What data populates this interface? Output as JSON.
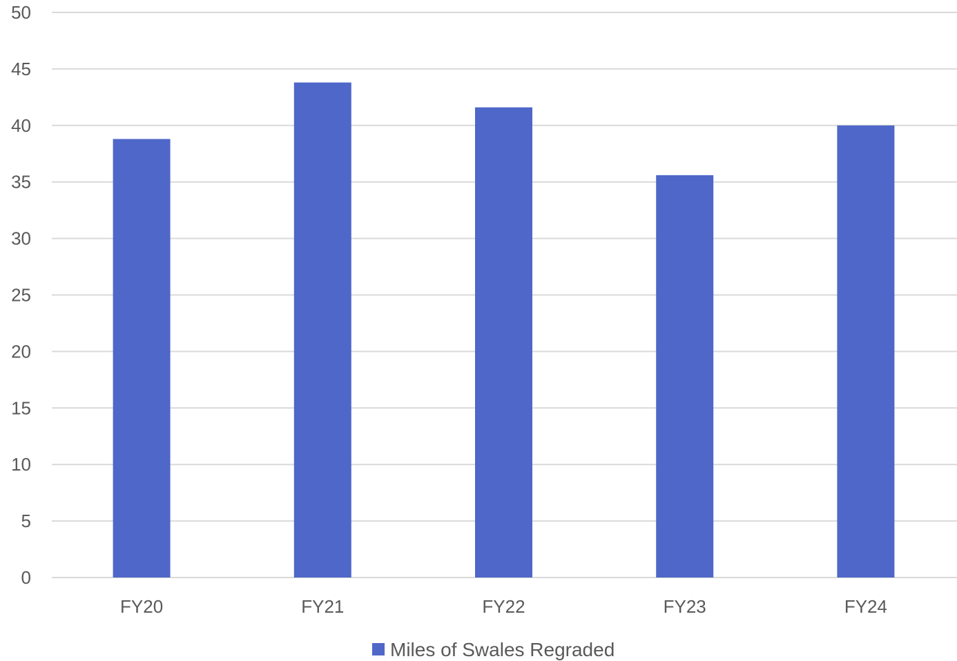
{
  "chart_data": {
    "type": "bar",
    "title": "",
    "xlabel": "",
    "ylabel": "",
    "categories": [
      "FY20",
      "FY21",
      "FY22",
      "FY23",
      "FY24"
    ],
    "series": [
      {
        "name": "Miles of Swales Regraded",
        "values": [
          38.8,
          43.8,
          41.6,
          35.6,
          40.0
        ],
        "color": "#4F67C8"
      }
    ],
    "ylim": [
      0,
      50
    ],
    "yticks": [
      0,
      5,
      10,
      15,
      20,
      25,
      30,
      35,
      40,
      45,
      50
    ],
    "grid": true,
    "legend": "bottom-center"
  },
  "colors": {
    "bar": "#4F67C8",
    "grid": "#D9D9D9",
    "text": "#595959",
    "background": "#FFFFFF"
  }
}
